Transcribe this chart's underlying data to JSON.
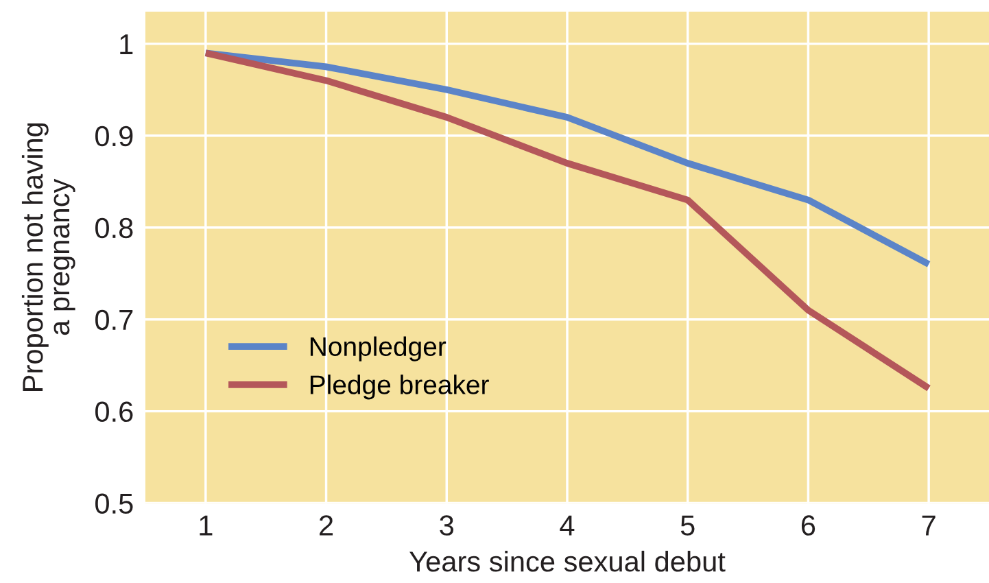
{
  "chart_data": {
    "type": "line",
    "xlabel": "Years since sexual debut",
    "ylabel": "Proportion not having\na pregnancy",
    "x": [
      1,
      2,
      3,
      4,
      5,
      6,
      7
    ],
    "series": [
      {
        "name": "Nonpledger",
        "color": "#5b84c8",
        "values": [
          0.99,
          0.975,
          0.95,
          0.92,
          0.87,
          0.83,
          0.76
        ]
      },
      {
        "name": "Pledge breaker",
        "color": "#b4575a",
        "values": [
          0.99,
          0.96,
          0.92,
          0.87,
          0.83,
          0.71,
          0.625
        ]
      }
    ],
    "xlim": [
      0.5,
      7.5
    ],
    "ylim": [
      0.5,
      1.035
    ],
    "xticks": [
      1,
      2,
      3,
      4,
      5,
      6,
      7
    ],
    "yticks": [
      0.5,
      0.6,
      0.7,
      0.8,
      0.9,
      1
    ],
    "grid": true,
    "legend": "center left",
    "line_style": "solid",
    "marker": "none"
  }
}
